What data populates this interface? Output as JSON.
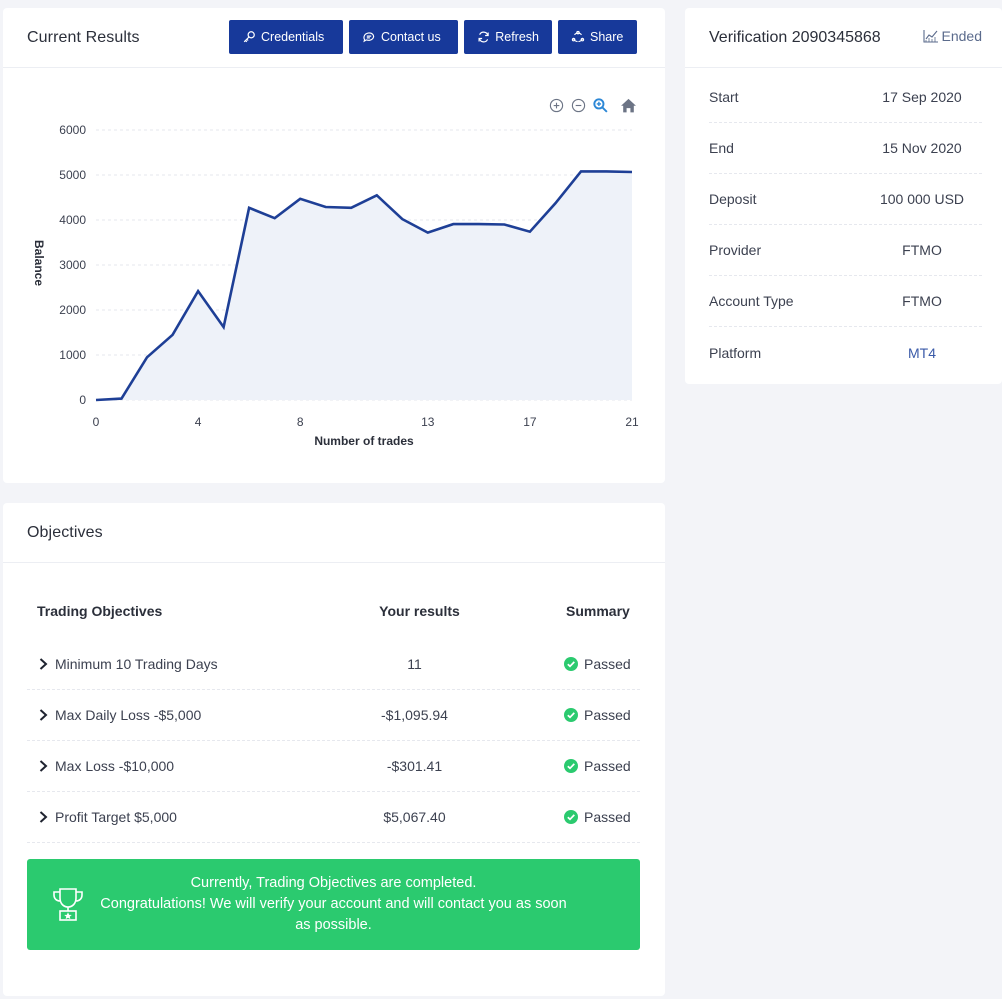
{
  "results": {
    "title": "Current Results",
    "buttons": {
      "credentials": "Credentials",
      "contact": "Contact us",
      "refresh": "Refresh",
      "share": "Share"
    },
    "chart_data": {
      "type": "area",
      "title": "",
      "xlabel": "Number of trades",
      "ylabel": "Balance",
      "x": [
        0,
        1,
        2,
        3,
        4,
        5,
        6,
        7,
        8,
        9,
        10,
        11,
        12,
        13,
        14,
        15,
        16,
        17,
        18,
        19,
        20,
        21
      ],
      "series": [
        {
          "values": [
            0,
            30,
            950,
            1450,
            2420,
            1620,
            4270,
            4040,
            4470,
            4290,
            4270,
            4550,
            4020,
            3720,
            3910,
            3910,
            3900,
            3740,
            4370,
            5080,
            5080,
            5067
          ]
        }
      ],
      "xlim": [
        0,
        21
      ],
      "ylim": [
        0,
        6000
      ],
      "x_ticks": [
        "0",
        "4",
        "8",
        "13",
        "17",
        "21"
      ],
      "x_tick_values": [
        0,
        4,
        8,
        13,
        17,
        21
      ],
      "y_ticks": [
        "0",
        "1000",
        "2000",
        "3000",
        "4000",
        "5000",
        "6000"
      ],
      "y_tick_values": [
        0,
        1000,
        2000,
        3000,
        4000,
        5000,
        6000
      ],
      "grid": true,
      "colors": {
        "line": "#1e3f96",
        "fill": "#eef2f9",
        "grid": "#e4e7ee"
      }
    },
    "tools": [
      "zoom-in-icon",
      "zoom-out-icon",
      "magnifier-icon",
      "home-icon"
    ]
  },
  "verification": {
    "title": "Verification 2090345868",
    "status": "Ended",
    "rows": [
      {
        "label": "Start",
        "value": "17 Sep 2020"
      },
      {
        "label": "End",
        "value": "15 Nov 2020"
      },
      {
        "label": "Deposit",
        "value": "100 000 USD"
      },
      {
        "label": "Provider",
        "value": "FTMO"
      },
      {
        "label": "Account Type",
        "value": "FTMO"
      },
      {
        "label": "Platform",
        "value": "MT4"
      }
    ]
  },
  "objectives": {
    "title": "Objectives",
    "headers": {
      "objective": "Trading Objectives",
      "results": "Your results",
      "summary": "Summary"
    },
    "rows": [
      {
        "objective": "Minimum 10 Trading Days",
        "result": "11",
        "summary": "Passed"
      },
      {
        "objective": "Max Daily Loss -$5,000",
        "result": "-$1,095.94",
        "summary": "Passed"
      },
      {
        "objective": "Max Loss -$10,000",
        "result": "-$301.41",
        "summary": "Passed"
      },
      {
        "objective": "Profit Target $5,000",
        "result": "$5,067.40",
        "summary": "Passed"
      }
    ],
    "banner": {
      "line1": "Currently, Trading Objectives are completed.",
      "line2": "Congratulations! We will verify your account and will contact you as soon",
      "line3": "as possible."
    }
  },
  "colors": {
    "brand": "#17399a",
    "success": "#2bca6f",
    "background": "#f3f4f8"
  }
}
